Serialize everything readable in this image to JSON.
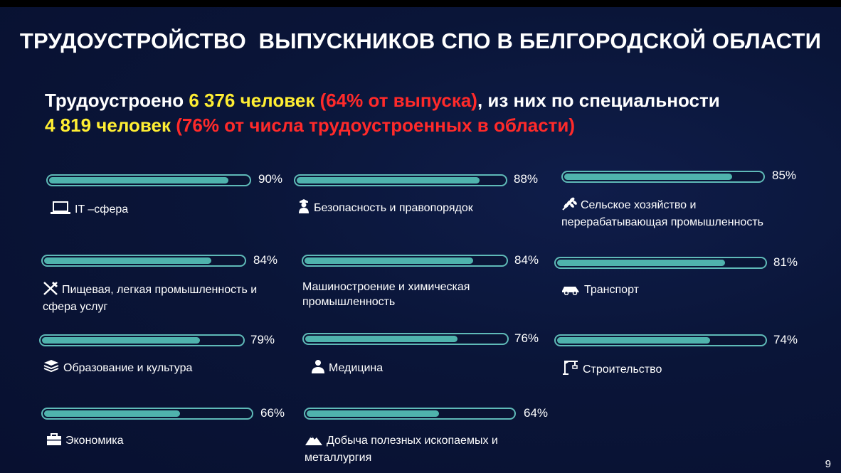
{
  "title": "ТРУДОУСТРОЙСТВО  ВЫПУСКНИКОВ СПО В БЕЛГОРОДСКОЙ ОБЛАСТИ",
  "summary": {
    "p1": "Трудоустроено ",
    "p2": "6 376 человек ",
    "p3": "(64% от выпуска)",
    "p4": ", из них по специальности",
    "p5": "4 819 человек ",
    "p6": "(76% от числа трудоустроенных в области)"
  },
  "page_number": "9",
  "colors": {
    "bar": "#4fb3ad",
    "highlight_yellow": "#ffee33",
    "highlight_red": "#ff2a2a"
  },
  "chart_data": {
    "type": "bar",
    "categories": [
      "IT –сфера",
      "Безопасность и правопорядок",
      "Сельское хозяйство и перерабатывающая промышленность",
      "Пищевая, легкая промышленность и сфера услуг",
      "Машиностроение и химическая промышленность",
      "Транспорт",
      "Образование и культура",
      "Медицина",
      "Строительство",
      "Экономика",
      "Добыча полезных ископаемых и металлургия"
    ],
    "values": [
      90,
      88,
      85,
      84,
      84,
      81,
      79,
      76,
      74,
      66,
      64
    ],
    "value_labels": [
      "90%",
      "88%",
      "85%",
      "84%",
      "84%",
      "81%",
      "79%",
      "76%",
      "74%",
      "66%",
      "64%"
    ],
    "icons": [
      "laptop-icon",
      "police-officer-icon",
      "wheat-icon",
      "fork-knife-icon",
      "",
      "car-icon",
      "books-icon",
      "doctor-icon",
      "crane-icon",
      "briefcase-icon",
      "mountain-icon"
    ],
    "ylim": [
      0,
      100
    ]
  }
}
